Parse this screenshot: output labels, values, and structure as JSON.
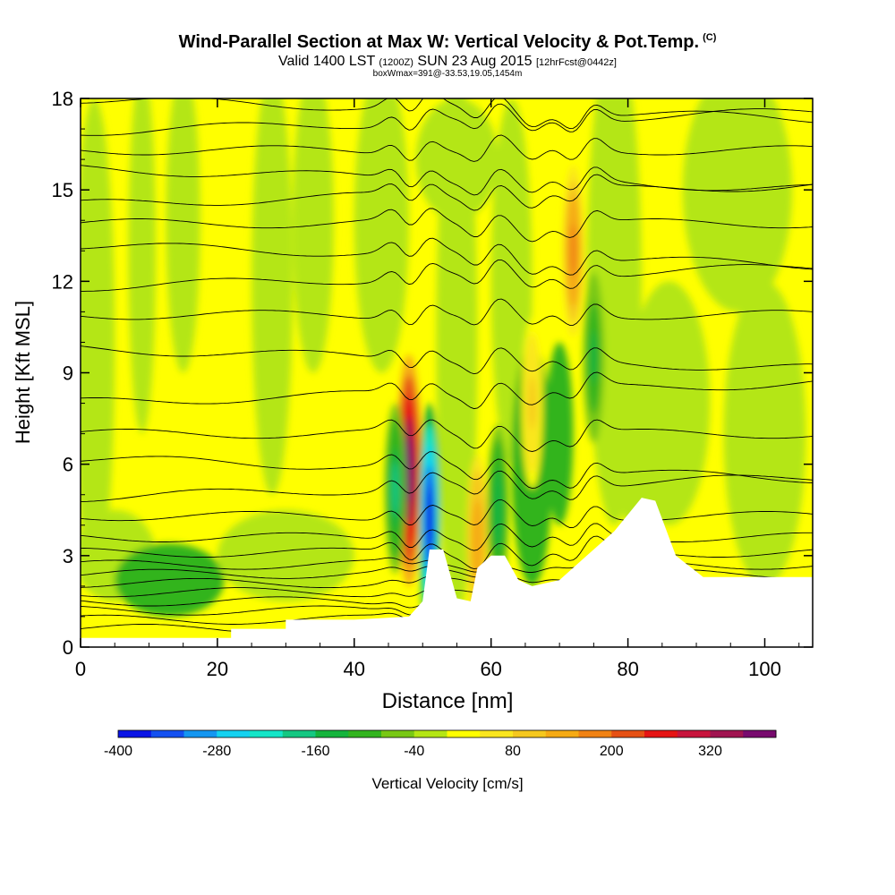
{
  "header": {
    "title": "Wind-Parallel Section at Max W: Vertical Velocity & Pot.Temp.",
    "title_mark": "(C)",
    "subtitle_a": "Valid 1400 LST",
    "subtitle_b": "(1200Z)",
    "subtitle_c": "SUN 23 Aug 2015",
    "subtitle_d": "[12hrFcst@0442z]",
    "subsubtitle": "boxWmax=391@-33.53,19.05,1454m"
  },
  "colorbar": {
    "label": "Vertical Velocity [cm/s]",
    "tick_labels": [
      "-400",
      "-280",
      "-160",
      "-40",
      "80",
      "200",
      "320"
    ],
    "tick_values": [
      -400,
      -280,
      -160,
      -40,
      80,
      200,
      320
    ],
    "range": [
      -400,
      400
    ],
    "colors": [
      "#0a14e6",
      "#1450f0",
      "#1496f0",
      "#14d2f0",
      "#14e6c8",
      "#14c882",
      "#14b43c",
      "#32b41e",
      "#78c814",
      "#b4e614",
      "#ffff00",
      "#fae61e",
      "#f5c81e",
      "#f5aa14",
      "#f08214",
      "#e65014",
      "#e61414",
      "#c8143c",
      "#a01450",
      "#780a6e"
    ]
  },
  "chart_data": {
    "type": "heatmap",
    "title": "Wind-Parallel Section at Max W: Vertical Velocity & Pot.Temp.",
    "xlabel": "Distance [nm]",
    "ylabel": "Height [Kft MSL]",
    "xlim": [
      0,
      107
    ],
    "ylim": [
      0,
      18
    ],
    "x_ticks": [
      0,
      20,
      40,
      60,
      80,
      100
    ],
    "y_ticks": [
      0,
      3,
      6,
      9,
      12,
      15,
      18
    ],
    "max_w_cm_s": 391,
    "max_w_location": "-33.53,19.05",
    "max_w_height_m": 1454,
    "terrain": [
      [
        0,
        0.3
      ],
      [
        22,
        0.3
      ],
      [
        22,
        0.6
      ],
      [
        30,
        0.6
      ],
      [
        30,
        0.9
      ],
      [
        40,
        0.9
      ],
      [
        48,
        1.0
      ],
      [
        50,
        1.5
      ],
      [
        51,
        3.2
      ],
      [
        53,
        3.2
      ],
      [
        55,
        1.6
      ],
      [
        57,
        1.5
      ],
      [
        58,
        2.6
      ],
      [
        60,
        3.0
      ],
      [
        62,
        3.0
      ],
      [
        64,
        2.2
      ],
      [
        66,
        2.0
      ],
      [
        70,
        2.2
      ],
      [
        74,
        3.0
      ],
      [
        78,
        3.8
      ],
      [
        82,
        4.9
      ],
      [
        84,
        4.8
      ],
      [
        87,
        3.0
      ],
      [
        91,
        2.3
      ],
      [
        107,
        2.3
      ]
    ],
    "updraft_cores": [
      {
        "x": 48,
        "y": 5.8,
        "w_cm_s": 391
      },
      {
        "x": 58,
        "y": 3.5,
        "w_cm_s": 150
      },
      {
        "x": 72,
        "y": 13.0,
        "w_cm_s": 180
      },
      {
        "x": 66,
        "y": 8.0,
        "w_cm_s": 90
      }
    ],
    "downdraft_cores": [
      {
        "x": 51,
        "y": 4.2,
        "w_cm_s": -400
      },
      {
        "x": 46,
        "y": 5.2,
        "w_cm_s": -170
      },
      {
        "x": 61,
        "y": 4.5,
        "w_cm_s": -150
      },
      {
        "x": 75,
        "y": 9.5,
        "w_cm_s": -130
      }
    ],
    "isentrope_base_heights_kft": [
      0.6,
      0.9,
      1.2,
      1.5,
      1.8,
      2.1,
      2.4,
      2.7,
      3.1,
      3.6,
      4.3,
      5.1,
      6.0,
      7.0,
      8.2,
      9.6,
      10.9,
      12.0,
      13.0,
      13.9,
      14.7,
      15.5,
      16.3,
      17.1,
      17.8
    ]
  }
}
